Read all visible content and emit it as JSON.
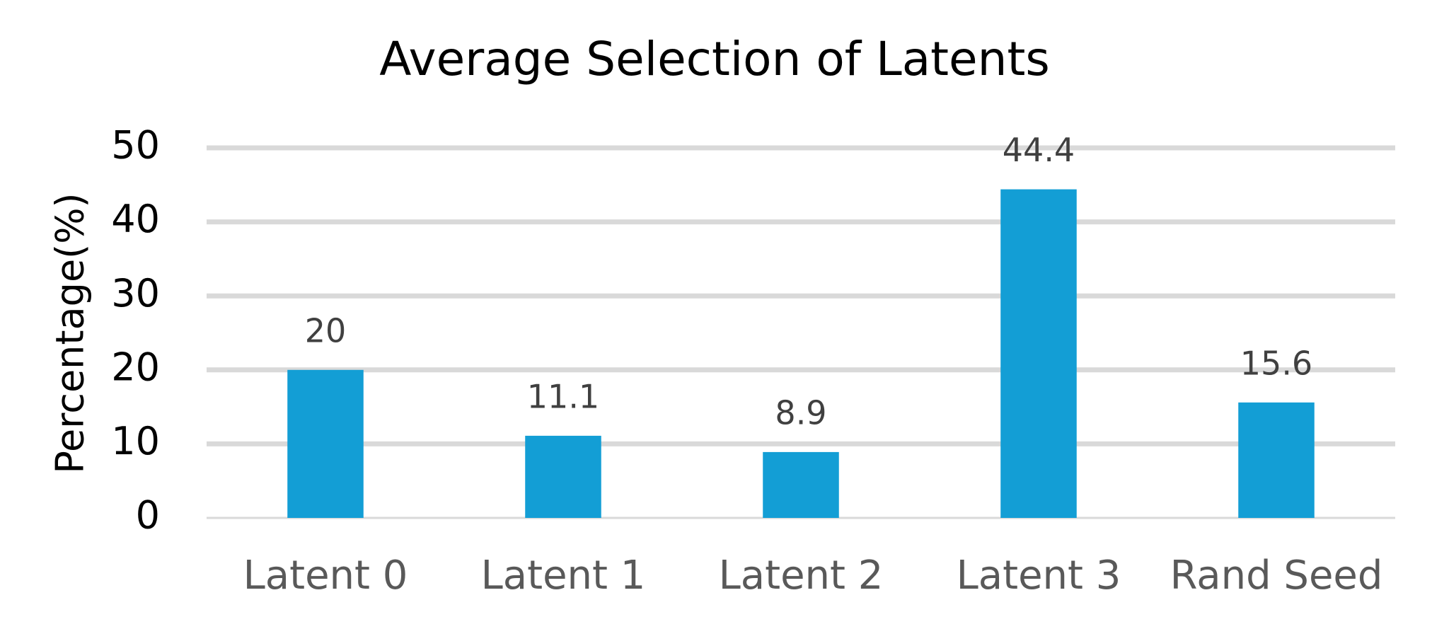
{
  "chart_data": {
    "type": "bar",
    "title": "Average Selection of Latents",
    "y_label": "Percentage(%)",
    "categories": [
      "Latent 0",
      "Latent 1",
      "Latent 2",
      "Latent 3",
      "Rand Seed"
    ],
    "values": [
      20,
      11.1,
      8.9,
      44.4,
      15.6
    ],
    "color": "#139ed5",
    "ylim": [
      0,
      50
    ],
    "yticks": [
      0,
      10,
      20,
      30,
      40,
      50
    ],
    "grid": true
  }
}
